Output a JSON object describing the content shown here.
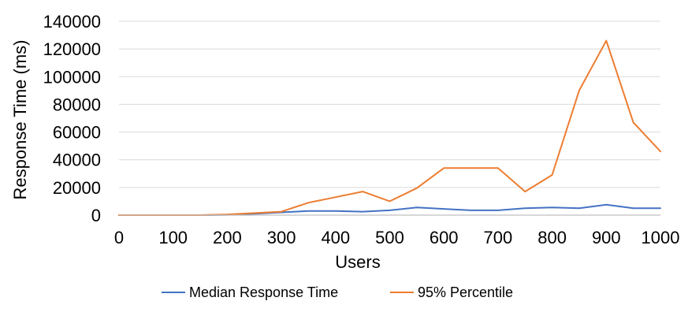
{
  "chart_data": {
    "type": "line",
    "title": "",
    "xlabel": "Users",
    "ylabel": "Response Time (ms)",
    "x": [
      0,
      50,
      100,
      150,
      200,
      250,
      300,
      350,
      400,
      450,
      500,
      550,
      600,
      650,
      700,
      750,
      800,
      850,
      900,
      950,
      1000
    ],
    "xlim": [
      0,
      1000
    ],
    "ylim": [
      0,
      140000
    ],
    "xticks": [
      "0",
      "100",
      "200",
      "300",
      "400",
      "500",
      "600",
      "700",
      "800",
      "900",
      "1000"
    ],
    "yticks": [
      "0",
      "20000",
      "40000",
      "60000",
      "80000",
      "100000",
      "120000",
      "140000"
    ],
    "grid": "horizontal",
    "legend": "bottom",
    "series": [
      {
        "name": "Median Response Time",
        "color": "#4472c4",
        "values": [
          0,
          0,
          0,
          0,
          200,
          1000,
          2000,
          3000,
          3000,
          2500,
          3500,
          5500,
          4500,
          3500,
          3500,
          5000,
          5500,
          5000,
          7500,
          5000,
          5000
        ]
      },
      {
        "name": "95% Percentile",
        "color": "#ed7d31",
        "values": [
          0,
          0,
          0,
          0,
          500,
          1500,
          2500,
          9000,
          13000,
          17000,
          10000,
          19500,
          34000,
          34000,
          34000,
          17000,
          29000,
          90000,
          126000,
          67000,
          46000
        ]
      }
    ]
  }
}
